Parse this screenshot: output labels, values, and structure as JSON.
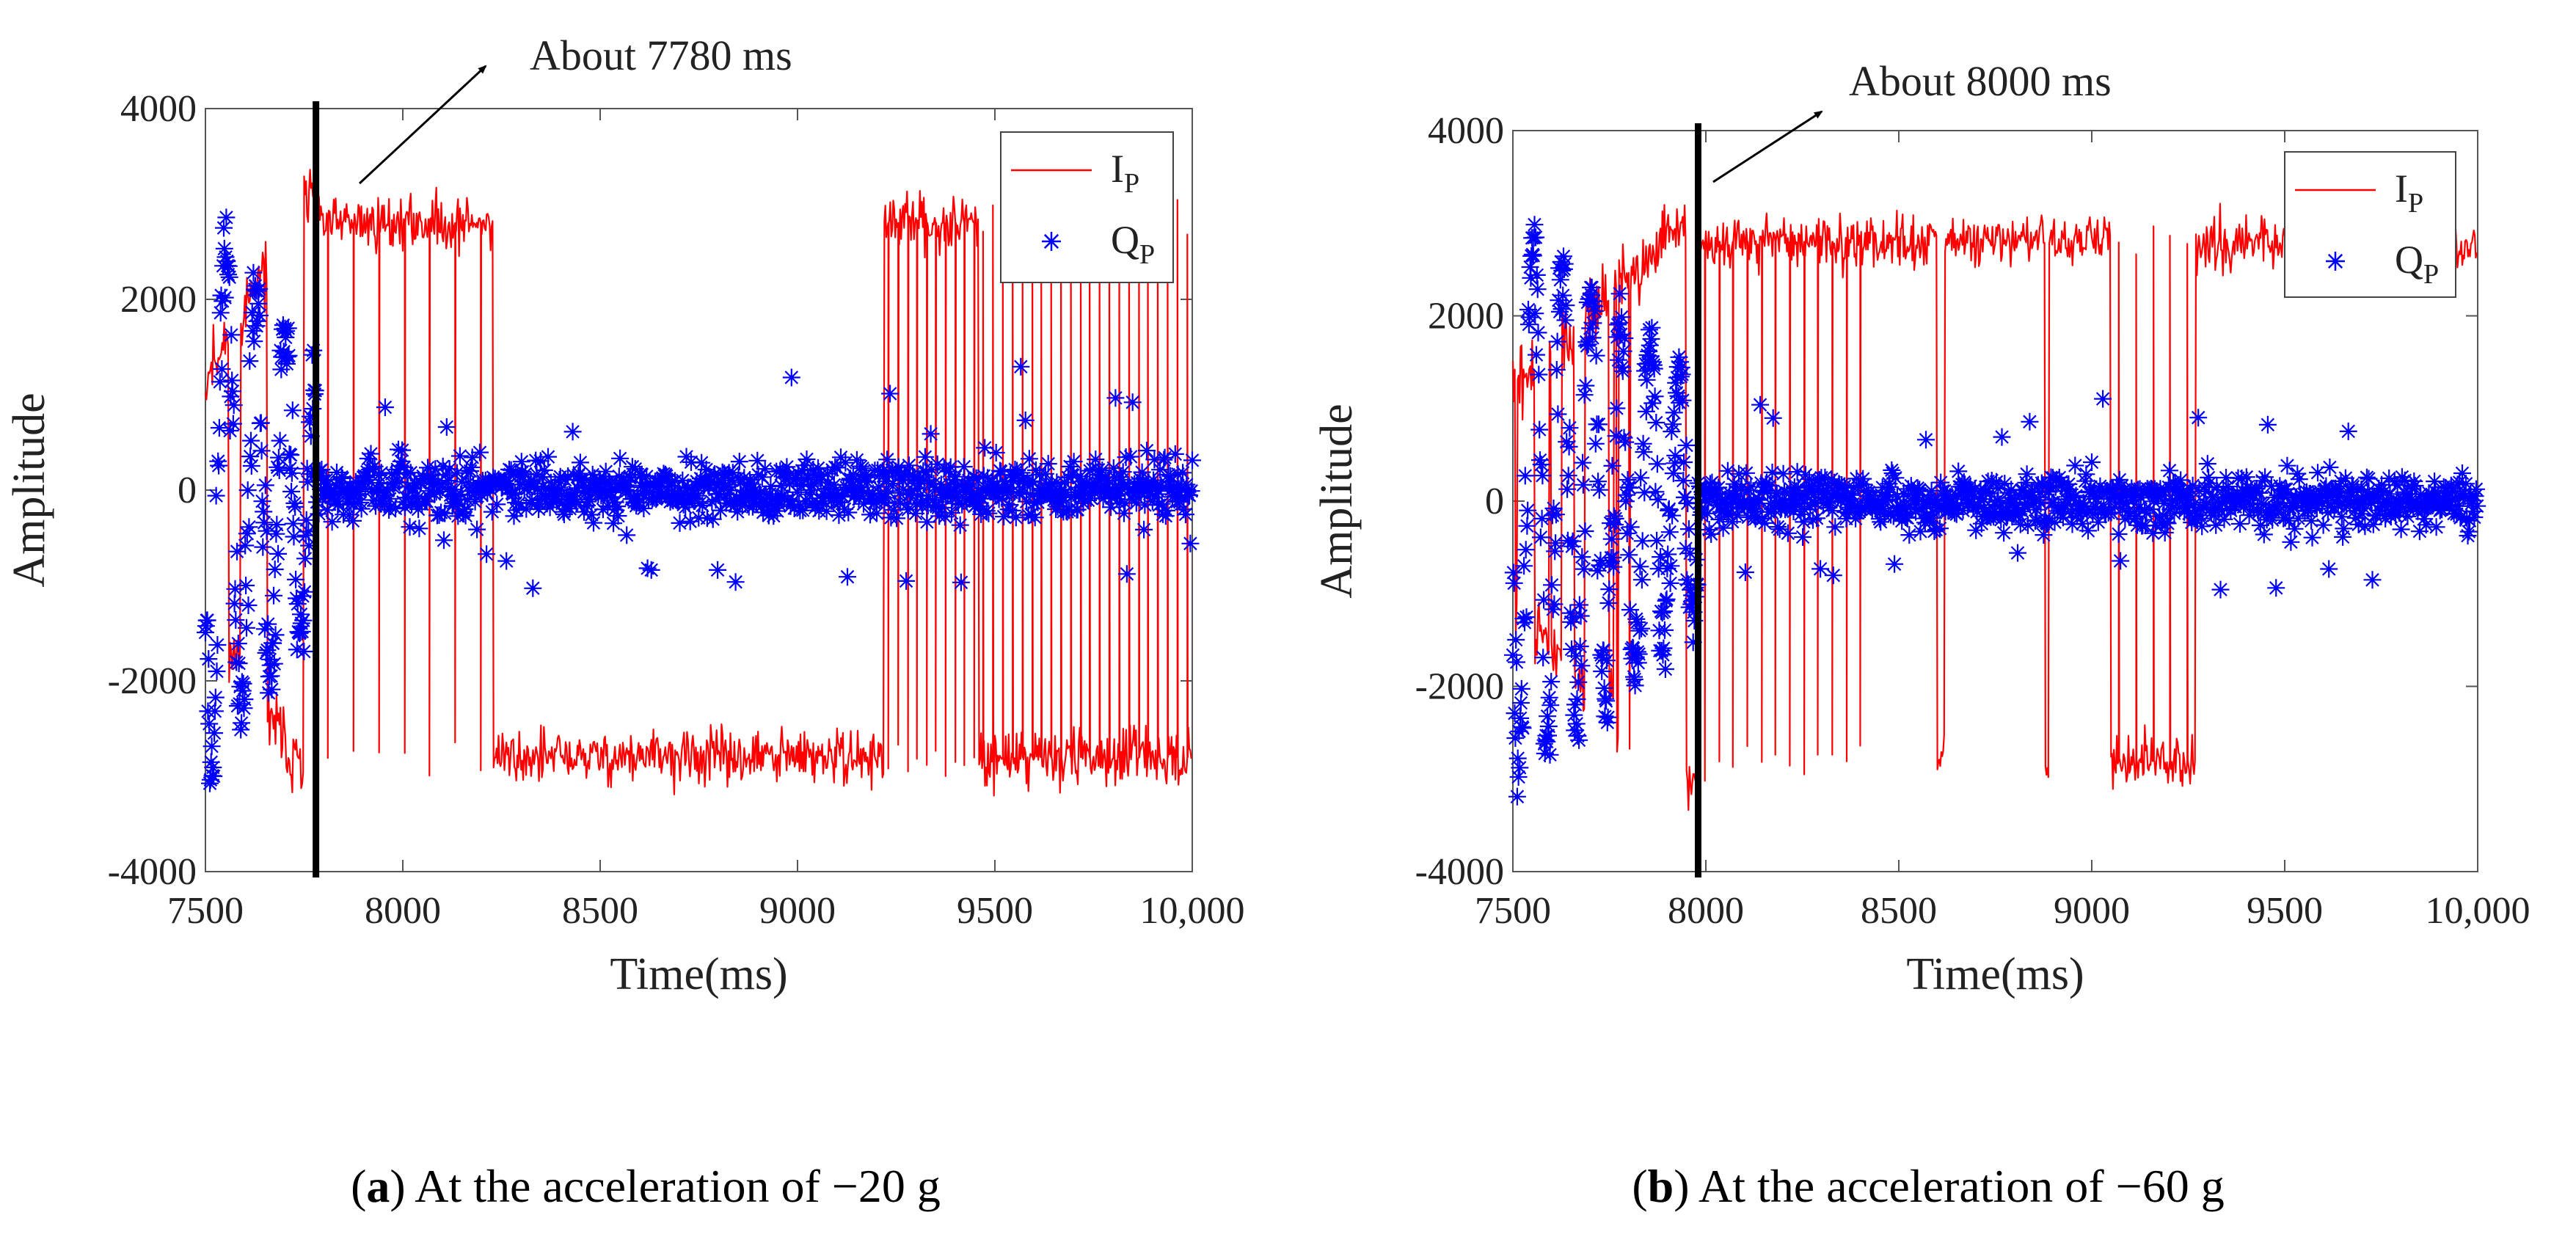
{
  "chart_data": [
    {
      "id": "a",
      "type": "line",
      "xlabel": "Time(ms)",
      "ylabel": "Amplitude",
      "xlim": [
        7500,
        10000
      ],
      "ylim": [
        -4000,
        4000
      ],
      "xticks": [
        7500,
        8000,
        8500,
        9000,
        9500,
        10000
      ],
      "xtick_labels": [
        "7500",
        "8000",
        "8500",
        "9000",
        "9500",
        "10,000"
      ],
      "yticks": [
        -4000,
        -2000,
        0,
        2000,
        4000
      ],
      "ytick_labels": [
        "-4000",
        "-2000",
        "0",
        "2000",
        "4000"
      ],
      "legend": [
        {
          "name": "I",
          "sub": "P",
          "marker": "line",
          "color": "#ff0000"
        },
        {
          "name": "Q",
          "sub": "P",
          "marker": "*",
          "color": "#0000ff"
        }
      ],
      "legend_position": "top-right",
      "annotation": {
        "text": "About 7780 ms",
        "x": 7780
      },
      "marker_line_x": 7780,
      "series": [
        {
          "name": "IP",
          "color": "#ff0000",
          "style": "line",
          "pull_in_time_ms": 7780,
          "settled_level": 2800,
          "noise": 280,
          "segments": [
            {
              "from": 7500,
              "to": 7780,
              "state": "transient"
            },
            {
              "from": 7780,
              "to": 8230,
              "state": "hi",
              "dips": 7
            },
            {
              "from": 8230,
              "to": 9220,
              "state": "lo",
              "dips": 0
            },
            {
              "from": 9220,
              "to": 9460,
              "state": "hi",
              "dips": 10
            },
            {
              "from": 9460,
              "to": 10000,
              "state": "lo",
              "dips": 22
            }
          ]
        },
        {
          "name": "QP",
          "color": "#0000ff",
          "style": "star",
          "pull_in_time_ms": 7780,
          "transient_amplitude": 2900,
          "settled_mean": 0,
          "settled_spread": 1000
        }
      ],
      "caption_label": "a",
      "caption_text": ") At the acceleration of −20 g"
    },
    {
      "id": "b",
      "type": "line",
      "xlabel": "Time(ms)",
      "ylabel": "Amplitude",
      "xlim": [
        7500,
        10000
      ],
      "ylim": [
        -4000,
        4000
      ],
      "xticks": [
        7500,
        8000,
        8500,
        9000,
        9500,
        10000
      ],
      "xtick_labels": [
        "7500",
        "8000",
        "8500",
        "9000",
        "9500",
        "10,000"
      ],
      "yticks": [
        -4000,
        -2000,
        0,
        2000,
        4000
      ],
      "ytick_labels": [
        "-4000",
        "-2000",
        "0",
        "2000",
        "4000"
      ],
      "legend": [
        {
          "name": "I",
          "sub": "P",
          "marker": "line",
          "color": "#ff0000"
        },
        {
          "name": "Q",
          "sub": "P",
          "marker": "*",
          "color": "#0000ff"
        }
      ],
      "legend_position": "top-right",
      "annotation": {
        "text": "About 8000 ms",
        "x": 7980
      },
      "marker_line_x": 7980,
      "series": [
        {
          "name": "IP",
          "color": "#ff0000",
          "style": "line",
          "pull_in_time_ms": 7980,
          "settled_level": 2800,
          "noise": 280,
          "segments": [
            {
              "from": 7500,
              "to": 7980,
              "state": "transient"
            },
            {
              "from": 7980,
              "to": 8420,
              "state": "hi",
              "dips": 12
            },
            {
              "from": 8420,
              "to": 8600,
              "state": "hi",
              "dips": 0
            },
            {
              "from": 8600,
              "to": 8620,
              "state": "lo",
              "dips": 0
            },
            {
              "from": 8620,
              "to": 8880,
              "state": "hi",
              "dips": 0
            },
            {
              "from": 8880,
              "to": 8890,
              "state": "lo",
              "dips": 0
            },
            {
              "from": 8890,
              "to": 9050,
              "state": "hi",
              "dips": 0
            },
            {
              "from": 9050,
              "to": 9270,
              "state": "lo",
              "dips": 5
            },
            {
              "from": 9270,
              "to": 9440,
              "state": "hi",
              "dips": 0
            },
            {
              "from": 9440,
              "to": 10000,
              "state": "hi",
              "dips": 0
            }
          ]
        },
        {
          "name": "QP",
          "color": "#0000ff",
          "style": "star",
          "pull_in_time_ms": 7980,
          "transient_amplitude": 3000,
          "settled_mean": 0,
          "settled_spread": 1000
        }
      ],
      "caption_label": "b",
      "caption_text": ") At the acceleration of −60 g"
    }
  ]
}
